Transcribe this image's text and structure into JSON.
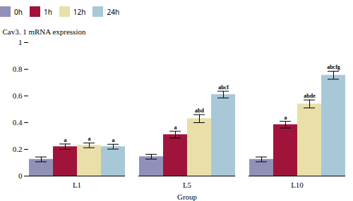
{
  "chart_data": {
    "type": "bar",
    "categories": [
      "L1",
      "L5",
      "L10"
    ],
    "series": [
      {
        "name": "0h",
        "color": "#9090b8",
        "values": [
          0.125,
          0.145,
          0.125
        ],
        "errors": [
          0.018,
          0.018,
          0.018
        ],
        "annotations": [
          null,
          null,
          null
        ]
      },
      {
        "name": "1h",
        "color": "#a0143c",
        "values": [
          0.22,
          0.31,
          0.385
        ],
        "errors": [
          0.02,
          0.025,
          0.025
        ],
        "annotations": [
          "a",
          "a",
          "a"
        ]
      },
      {
        "name": "12h",
        "color": "#e8e0a8",
        "values": [
          0.23,
          0.43,
          0.54
        ],
        "errors": [
          0.018,
          0.03,
          0.03
        ],
        "annotations": [
          "a",
          "abd",
          "abde"
        ]
      },
      {
        "name": "24h",
        "color": "#a8c8d8",
        "values": [
          0.22,
          0.61,
          0.755
        ],
        "errors": [
          0.018,
          0.025,
          0.03
        ],
        "annotations": [
          "a",
          "abcf",
          "abcfg"
        ]
      }
    ],
    "xlabel": "Group",
    "ylabel": "Cav3. 1 mRNA expression",
    "ylim": [
      0,
      1.0
    ],
    "yticks": [
      0,
      0.2,
      0.4,
      0.6,
      0.8,
      1
    ],
    "grid": false,
    "legend": "top"
  }
}
